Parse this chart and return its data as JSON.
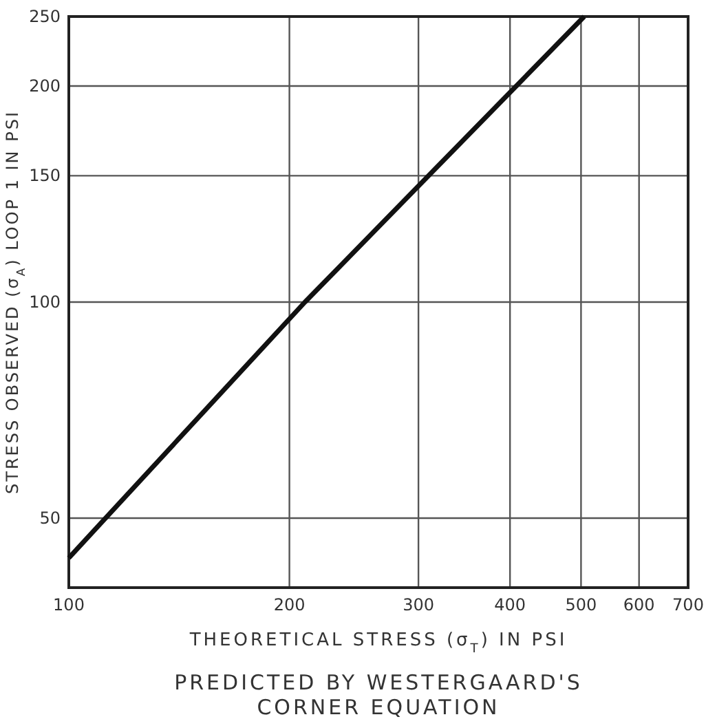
{
  "chart_data": {
    "type": "line",
    "xlabel": "THEORETICAL STRESS (σ$_{T}$) IN PSI",
    "ylabel": "STRESS OBSERVED (σ$_{A}$) LOOP 1 IN PSI",
    "annotations": [
      "PREDICTED BY WESTERGAARD'S CORNER EQUATION"
    ],
    "x": [
      100,
      210,
      505
    ],
    "series": [
      {
        "color": "#111111",
        "values": [
          44,
          100,
          250
        ]
      }
    ],
    "log": "xy",
    "xlim": [
      100,
      700
    ],
    "ylim": [
      40,
      250
    ],
    "xticks": [
      100,
      200,
      300,
      400,
      500,
      600,
      700
    ],
    "yticks": [
      50,
      100,
      150,
      200,
      250
    ],
    "grid": true,
    "marker": "none",
    "line_style": "solid"
  }
}
